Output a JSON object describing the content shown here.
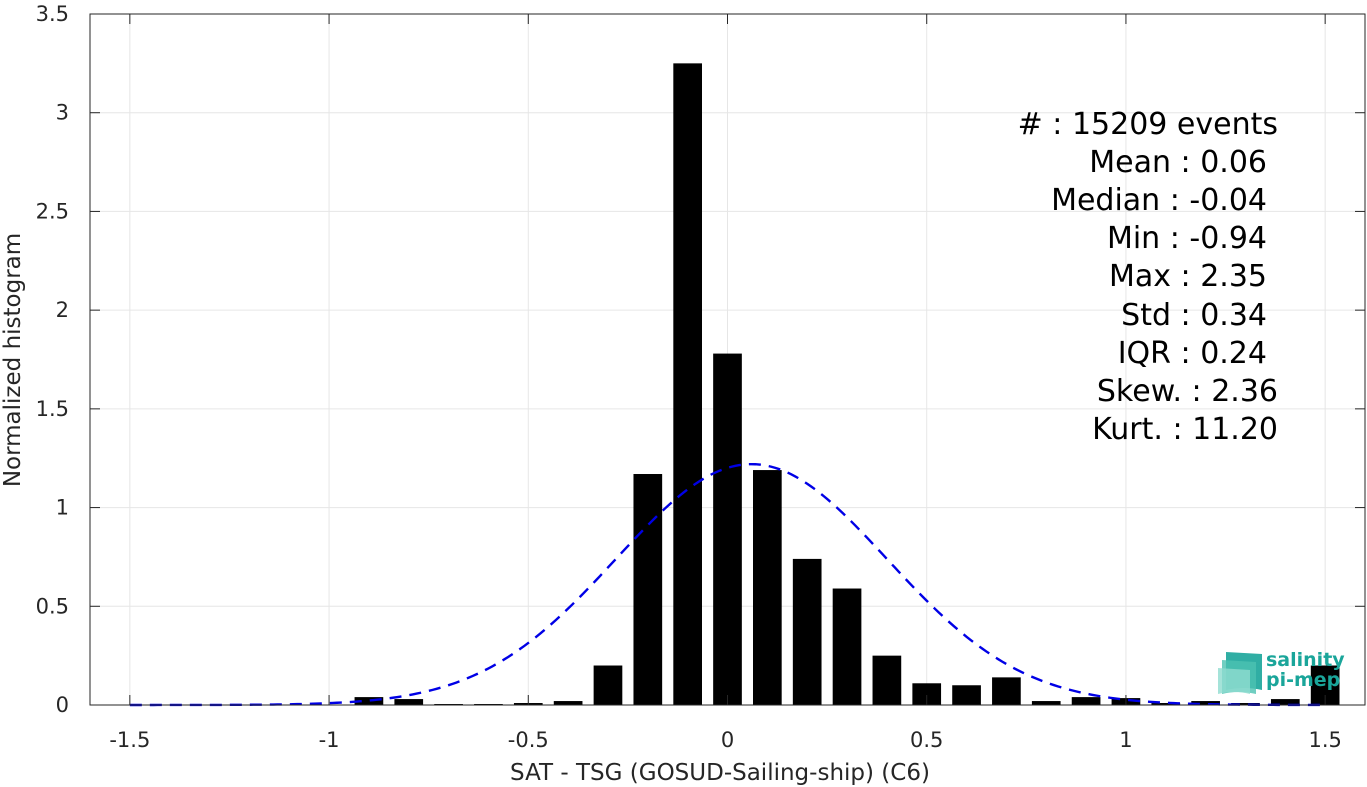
{
  "chart_data": {
    "type": "bar",
    "xlabel": "SAT - TSG (GOSUD-Sailing-ship) (C6)",
    "ylabel": "Normalized histogram",
    "xlim": [
      -1.6,
      1.6
    ],
    "ylim": [
      0,
      3.5
    ],
    "xticks": [
      -1.5,
      -1,
      -0.5,
      0,
      0.5,
      1,
      1.5
    ],
    "xtick_labels": [
      "-1.5",
      "-1",
      "-0.5",
      "0",
      "0.5",
      "1",
      "1.5"
    ],
    "yticks": [
      0,
      0.5,
      1,
      1.5,
      2,
      2.5,
      3,
      3.5
    ],
    "ytick_labels": [
      "0",
      "0.5",
      "1",
      "1.5",
      "2",
      "2.5",
      "3",
      "3.5"
    ],
    "grid": true,
    "bar_color": "#000000",
    "bin_width": 0.1,
    "bars": {
      "x": [
        -0.9,
        -0.8,
        -0.7,
        -0.6,
        -0.5,
        -0.4,
        -0.3,
        -0.2,
        -0.1,
        0.0,
        0.1,
        0.2,
        0.3,
        0.4,
        0.5,
        0.6,
        0.7,
        0.8,
        0.9,
        1.0,
        1.1,
        1.2,
        1.3,
        1.4,
        1.5
      ],
      "values": [
        0.04,
        0.03,
        0.005,
        0.005,
        0.01,
        0.02,
        0.2,
        1.17,
        3.25,
        1.78,
        1.19,
        0.74,
        0.59,
        0.25,
        0.11,
        0.1,
        0.14,
        0.02,
        0.04,
        0.035,
        0.01,
        0.02,
        0.01,
        0.03,
        0.2
      ]
    },
    "fit_curve": {
      "style": "dashed",
      "color": "#0000e6",
      "mean": 0.06,
      "std": 0.34,
      "peak": 1.22,
      "x_range": [
        -1.5,
        1.5
      ]
    },
    "stats": {
      "lines": [
        "#  : 15209 events",
        "Mean : 0.06",
        "Median : -0.04",
        "Min : -0.94",
        "Max : 2.35",
        "Std : 0.34",
        "IQR : 0.24",
        "Skew. : 2.36",
        "Kurt. : 11.20"
      ]
    },
    "logo": {
      "line1": "salinity",
      "line2": "pi-mep",
      "color": "#1aa59a"
    }
  }
}
